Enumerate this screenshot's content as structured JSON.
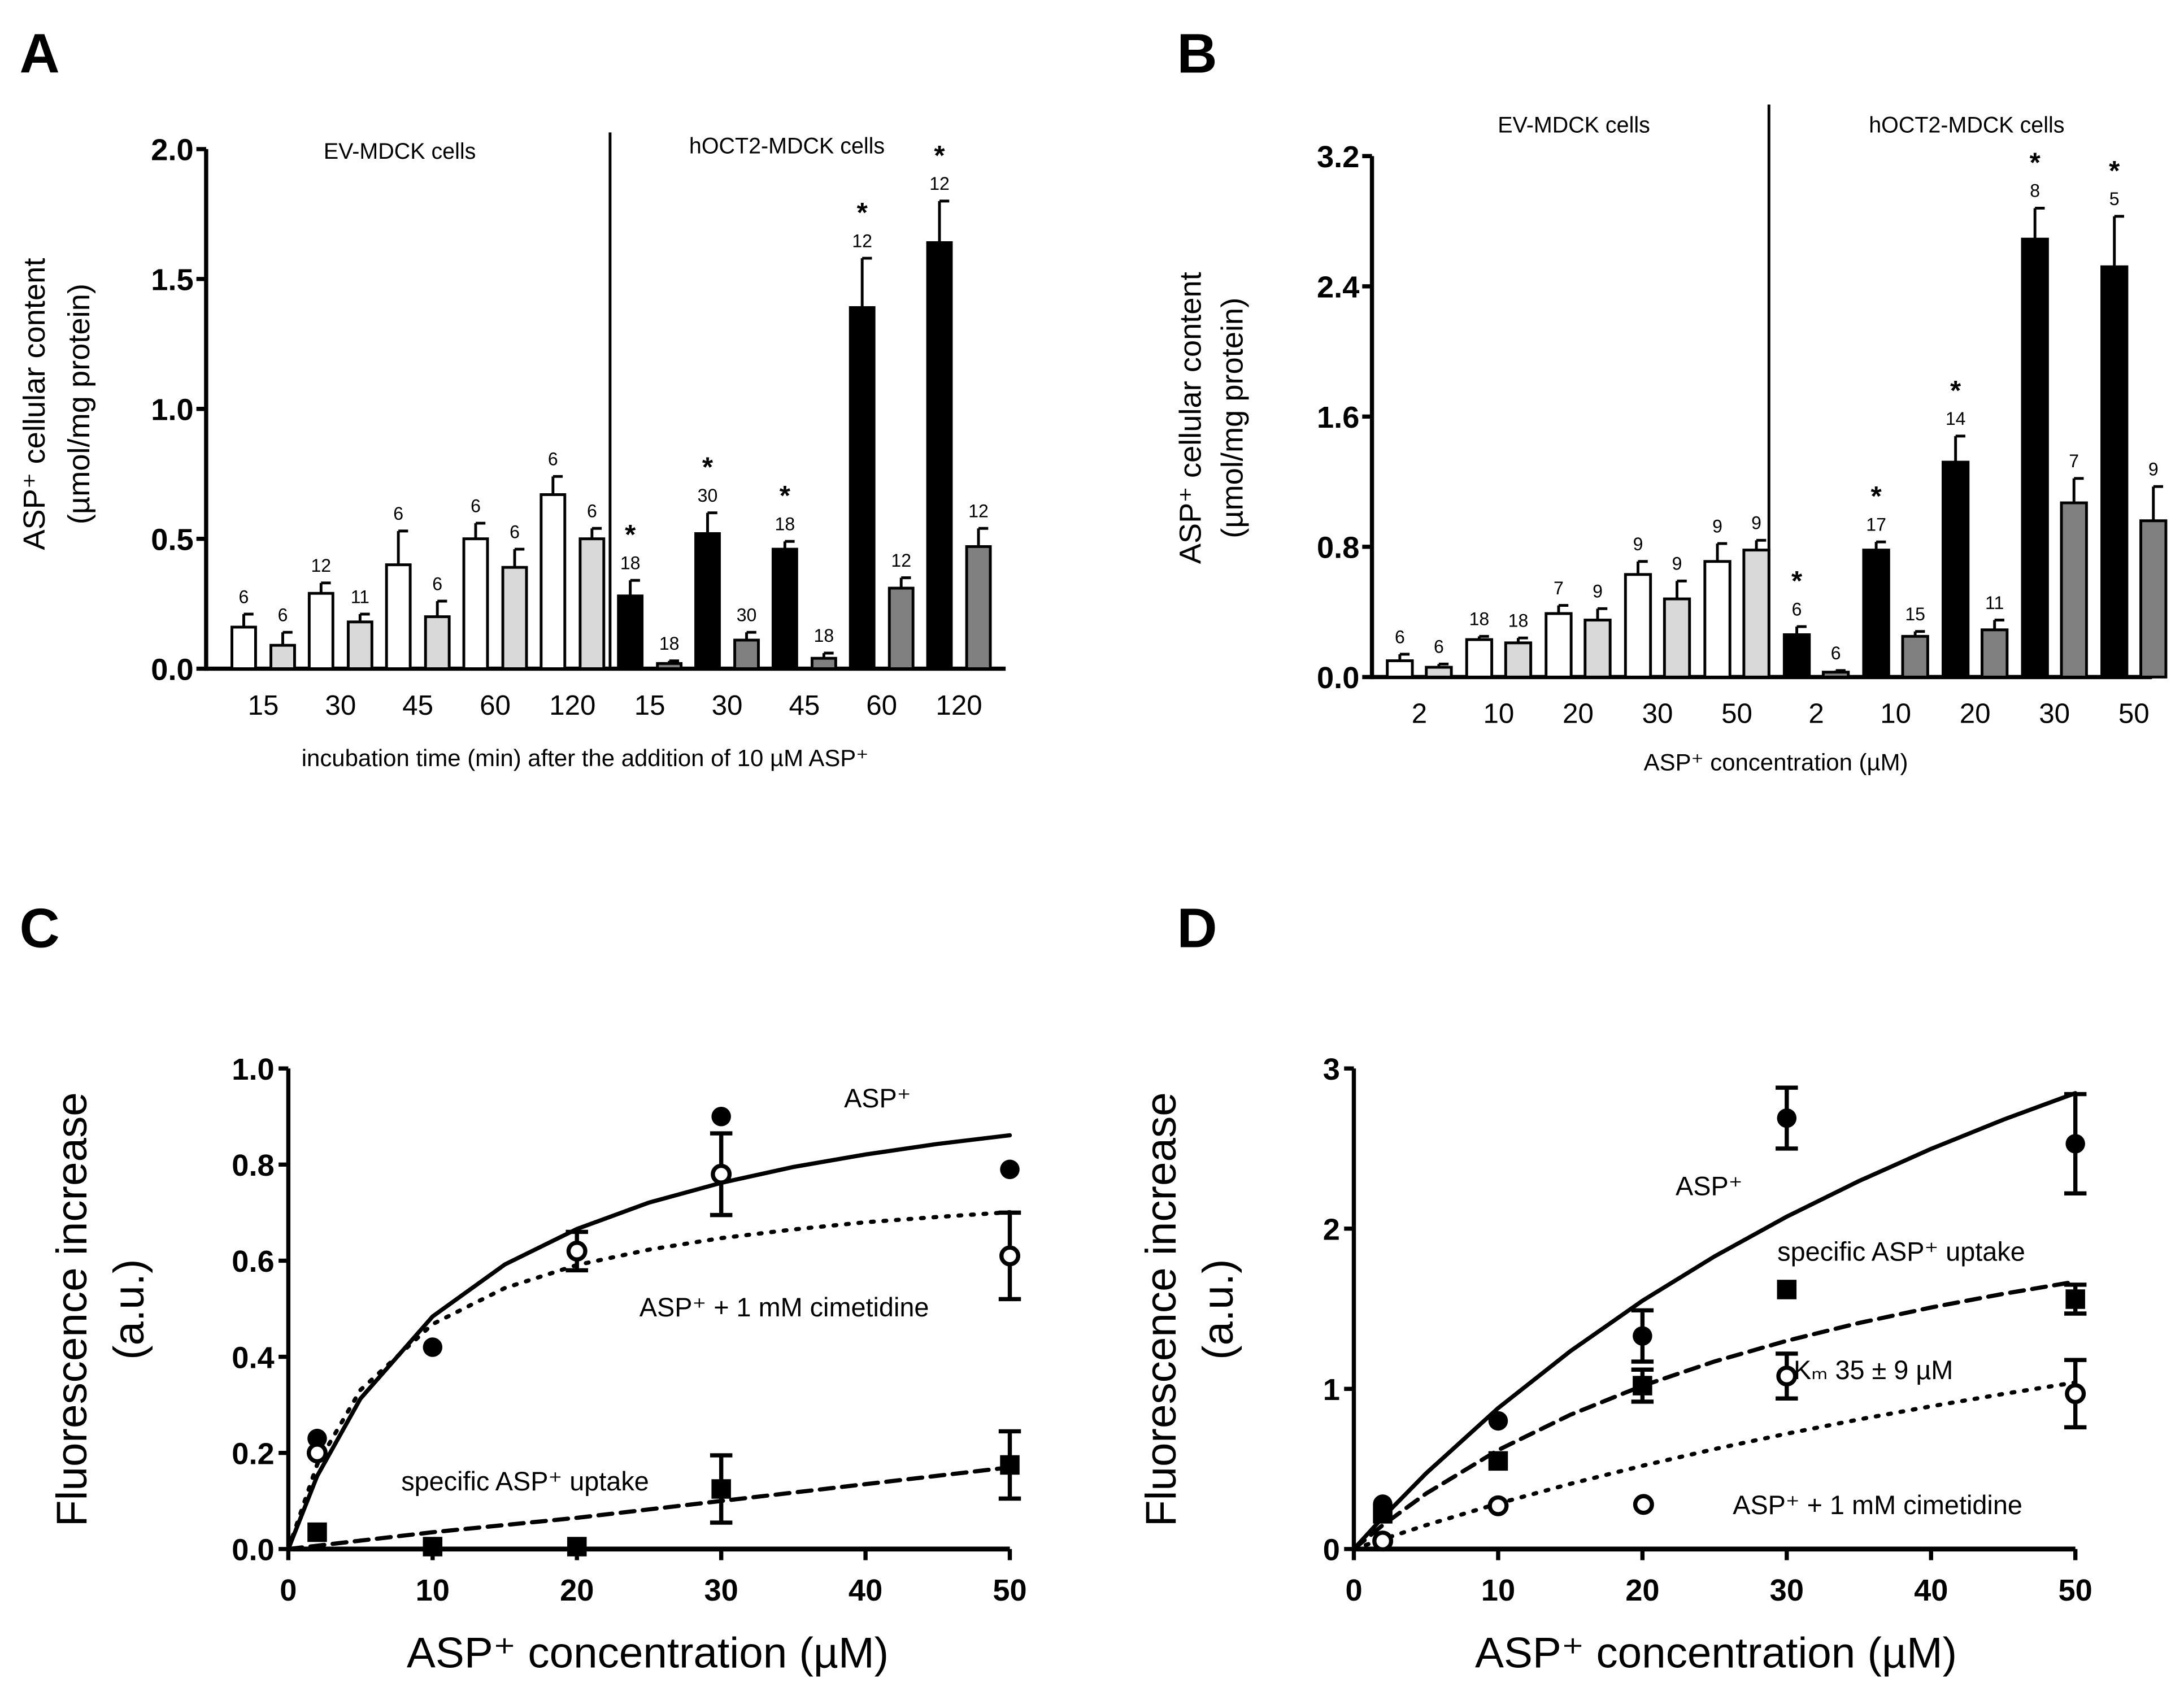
{
  "chart_data": [
    {
      "type": "bar",
      "panel": "A",
      "ylabel": [
        "ASP⁺ cellular content",
        "(µmol/mg protein)"
      ],
      "xlabel": "incubation time (min) after the addition of 10 µM ASP⁺",
      "ylim": [
        0,
        2.0
      ],
      "yticks": [
        "0.0",
        "0.5",
        "1.0",
        "1.5",
        "2.0"
      ],
      "groups": [
        {
          "name": "EV-MDCK cells",
          "categories": [
            "15",
            "30",
            "45",
            "60",
            "120"
          ],
          "series": [
            {
              "fill": "#ffffff",
              "values": [
                0.16,
                0.29,
                0.4,
                0.5,
                0.67
              ],
              "errors": [
                0.05,
                0.04,
                0.13,
                0.06,
                0.07
              ],
              "n": [
                "6",
                "12",
                "6",
                "6",
                "6"
              ],
              "significant": [
                false,
                false,
                false,
                false,
                false
              ]
            },
            {
              "fill": "#d9d9d9",
              "values": [
                0.09,
                0.18,
                0.2,
                0.39,
                0.5
              ],
              "errors": [
                0.05,
                0.03,
                0.06,
                0.07,
                0.04
              ],
              "n": [
                "6",
                "11",
                "6",
                "6",
                "6"
              ],
              "significant": [
                false,
                false,
                false,
                false,
                false
              ]
            }
          ]
        },
        {
          "name": "hOCT2-MDCK cells",
          "categories": [
            "15",
            "30",
            "45",
            "60",
            "120"
          ],
          "series": [
            {
              "fill": "#000000",
              "values": [
                0.28,
                0.52,
                0.46,
                1.39,
                1.64
              ],
              "errors": [
                0.06,
                0.08,
                0.03,
                0.19,
                0.16
              ],
              "n": [
                "18",
                "30",
                "18",
                "12",
                "12"
              ],
              "significant": [
                true,
                true,
                true,
                true,
                true
              ]
            },
            {
              "fill": "#808080",
              "values": [
                0.02,
                0.11,
                0.04,
                0.31,
                0.47
              ],
              "errors": [
                0.01,
                0.03,
                0.02,
                0.04,
                0.07
              ],
              "n": [
                "18",
                "30",
                "18",
                "12",
                "12"
              ],
              "significant": [
                false,
                false,
                false,
                false,
                false
              ]
            }
          ]
        }
      ],
      "significance_mark": "*"
    },
    {
      "type": "bar",
      "panel": "B",
      "ylabel": [
        "ASP⁺ cellular content",
        "(µmol/mg protein)"
      ],
      "xlabel": "ASP⁺ concentration (µM)",
      "ylim": [
        0,
        3.2
      ],
      "yticks": [
        "0.0",
        "0.8",
        "1.6",
        "2.4",
        "3.2"
      ],
      "groups": [
        {
          "name": "EV-MDCK cells",
          "categories": [
            "2",
            "10",
            "20",
            "30",
            "50"
          ],
          "series": [
            {
              "fill": "#ffffff",
              "values": [
                0.1,
                0.23,
                0.39,
                0.63,
                0.71
              ],
              "errors": [
                0.04,
                0.02,
                0.05,
                0.08,
                0.11
              ],
              "n": [
                "6",
                "18",
                "7",
                "9",
                "9"
              ],
              "significant": [
                false,
                false,
                false,
                false,
                false
              ]
            },
            {
              "fill": "#d9d9d9",
              "values": [
                0.06,
                0.21,
                0.35,
                0.48,
                0.78
              ],
              "errors": [
                0.02,
                0.03,
                0.07,
                0.11,
                0.06
              ],
              "n": [
                "6",
                "18",
                "9",
                "9",
                "9"
              ],
              "significant": [
                false,
                false,
                false,
                false,
                false
              ]
            }
          ]
        },
        {
          "name": "hOCT2-MDCK cells",
          "categories": [
            "2",
            "10",
            "20",
            "30",
            "50"
          ],
          "series": [
            {
              "fill": "#000000",
              "values": [
                0.26,
                0.78,
                1.32,
                2.69,
                2.52
              ],
              "errors": [
                0.05,
                0.05,
                0.16,
                0.19,
                0.31
              ],
              "n": [
                "6",
                "17",
                "14",
                "8",
                "5"
              ],
              "significant": [
                true,
                true,
                true,
                true,
                true
              ]
            },
            {
              "fill": "#808080",
              "values": [
                0.03,
                0.25,
                0.29,
                1.07,
                0.96
              ],
              "errors": [
                0.01,
                0.03,
                0.06,
                0.15,
                0.21
              ],
              "n": [
                "6",
                "15",
                "11",
                "7",
                "9"
              ],
              "significant": [
                false,
                false,
                false,
                false,
                false
              ]
            }
          ]
        }
      ],
      "significance_mark": "*"
    },
    {
      "type": "scatter",
      "panel": "C",
      "ylabel": [
        "Fluorescence increase",
        "(a.u.)"
      ],
      "xlabel": "ASP⁺ concentration (µM)",
      "xlim": [
        0,
        50
      ],
      "ylim": [
        0,
        1.0
      ],
      "xticks": [
        "0",
        "10",
        "20",
        "30",
        "40",
        "50"
      ],
      "yticks": [
        "0.0",
        "0.2",
        "0.4",
        "0.6",
        "0.8",
        "1.0"
      ],
      "series": [
        {
          "label": "ASP⁺",
          "marker": "filled-circle",
          "line": "solid",
          "points": [
            [
              2,
              0.23,
              0
            ],
            [
              10,
              0.42,
              0
            ],
            [
              20,
              0.62,
              0
            ],
            [
              30,
              0.9,
              0
            ],
            [
              50,
              0.79,
              0
            ]
          ],
          "fit": [
            [
              0,
              0
            ],
            [
              2,
              0.152
            ],
            [
              5,
              0.313
            ],
            [
              10,
              0.484
            ],
            [
              15,
              0.592
            ],
            [
              20,
              0.666
            ],
            [
              25,
              0.721
            ],
            [
              30,
              0.762
            ],
            [
              35,
              0.795
            ],
            [
              40,
              0.821
            ],
            [
              45,
              0.843
            ],
            [
              50,
              0.861
            ]
          ]
        },
        {
          "label": "ASP⁺ + 1 mM cimetidine",
          "marker": "open-circle",
          "line": "dotted",
          "points": [
            [
              2,
              0.2,
              0
            ],
            [
              20,
              0.62,
              0.04
            ],
            [
              30,
              0.78,
              0.085
            ],
            [
              50,
              0.61,
              0.09
            ]
          ],
          "fit": [
            [
              0,
              0
            ],
            [
              2,
              0.176
            ],
            [
              5,
              0.331
            ],
            [
              10,
              0.468
            ],
            [
              15,
              0.543
            ],
            [
              20,
              0.591
            ],
            [
              25,
              0.623
            ],
            [
              30,
              0.647
            ],
            [
              35,
              0.665
            ],
            [
              40,
              0.68
            ],
            [
              45,
              0.691
            ],
            [
              50,
              0.701
            ]
          ]
        },
        {
          "label": "specific ASP⁺ uptake",
          "marker": "filled-square",
          "line": "dashed",
          "points": [
            [
              2,
              0.035,
              0
            ],
            [
              10,
              0.005,
              0
            ],
            [
              20,
              0.005,
              0
            ],
            [
              30,
              0.125,
              0.07
            ],
            [
              50,
              0.175,
              0.07
            ]
          ],
          "fit": [
            [
              0,
              0
            ],
            [
              10,
              0.035
            ],
            [
              20,
              0.065
            ],
            [
              30,
              0.1
            ],
            [
              40,
              0.135
            ],
            [
              50,
              0.17
            ]
          ]
        }
      ]
    },
    {
      "type": "scatter",
      "panel": "D",
      "ylabel": [
        "Fluorescence increase",
        "(a.u.)"
      ],
      "xlabel": "ASP⁺ concentration (µM)",
      "xlim": [
        0,
        50
      ],
      "ylim": [
        0,
        3
      ],
      "xticks": [
        "0",
        "10",
        "20",
        "30",
        "40",
        "50"
      ],
      "yticks": [
        "0",
        "1",
        "2",
        "3"
      ],
      "annotation": "Kₘ 35 ± 9 µM",
      "series": [
        {
          "label": "ASP⁺",
          "marker": "filled-circle",
          "line": "solid",
          "points": [
            [
              2,
              0.28,
              0
            ],
            [
              10,
              0.8,
              0
            ],
            [
              20,
              1.33,
              0.16
            ],
            [
              30,
              2.69,
              0.19
            ],
            [
              50,
              2.53,
              0.31
            ]
          ],
          "fit": [
            [
              0,
              0
            ],
            [
              2,
              0.197
            ],
            [
              5,
              0.472
            ],
            [
              10,
              0.88
            ],
            [
              15,
              1.235
            ],
            [
              20,
              1.55
            ],
            [
              25,
              1.827
            ],
            [
              30,
              2.075
            ],
            [
              35,
              2.297
            ],
            [
              40,
              2.498
            ],
            [
              45,
              2.68
            ],
            [
              50,
              2.846
            ]
          ]
        },
        {
          "label": "specific ASP⁺ uptake",
          "marker": "filled-square",
          "line": "dashed",
          "points": [
            [
              2,
              0.22,
              0
            ],
            [
              10,
              0.55,
              0
            ],
            [
              20,
              1.02,
              0.1
            ],
            [
              30,
              1.62,
              0
            ],
            [
              50,
              1.56,
              0.09
            ]
          ],
          "fit": [
            [
              0,
              0
            ],
            [
              2,
              0.149
            ],
            [
              5,
              0.346
            ],
            [
              10,
              0.618
            ],
            [
              15,
              0.838
            ],
            [
              20,
              1.019
            ],
            [
              25,
              1.171
            ],
            [
              30,
              1.3
            ],
            [
              35,
              1.411
            ],
            [
              40,
              1.508
            ],
            [
              45,
              1.593
            ],
            [
              50,
              1.669
            ]
          ]
        },
        {
          "label": "ASP⁺ + 1 mM cimetidine",
          "marker": "open-circle",
          "line": "dotted",
          "points": [
            [
              2,
              0.05,
              0
            ],
            [
              10,
              0.27,
              0
            ],
            [
              30,
              1.08,
              0.14
            ],
            [
              50,
              0.97,
              0.21
            ]
          ],
          "fit": [
            [
              0,
              0
            ],
            [
              2,
              0.061
            ],
            [
              5,
              0.149
            ],
            [
              10,
              0.284
            ],
            [
              15,
              0.407
            ],
            [
              20,
              0.52
            ],
            [
              25,
              0.624
            ],
            [
              30,
              0.72
            ],
            [
              35,
              0.809
            ],
            [
              40,
              0.891
            ],
            [
              45,
              0.968
            ],
            [
              50,
              1.04
            ]
          ]
        }
      ]
    }
  ]
}
